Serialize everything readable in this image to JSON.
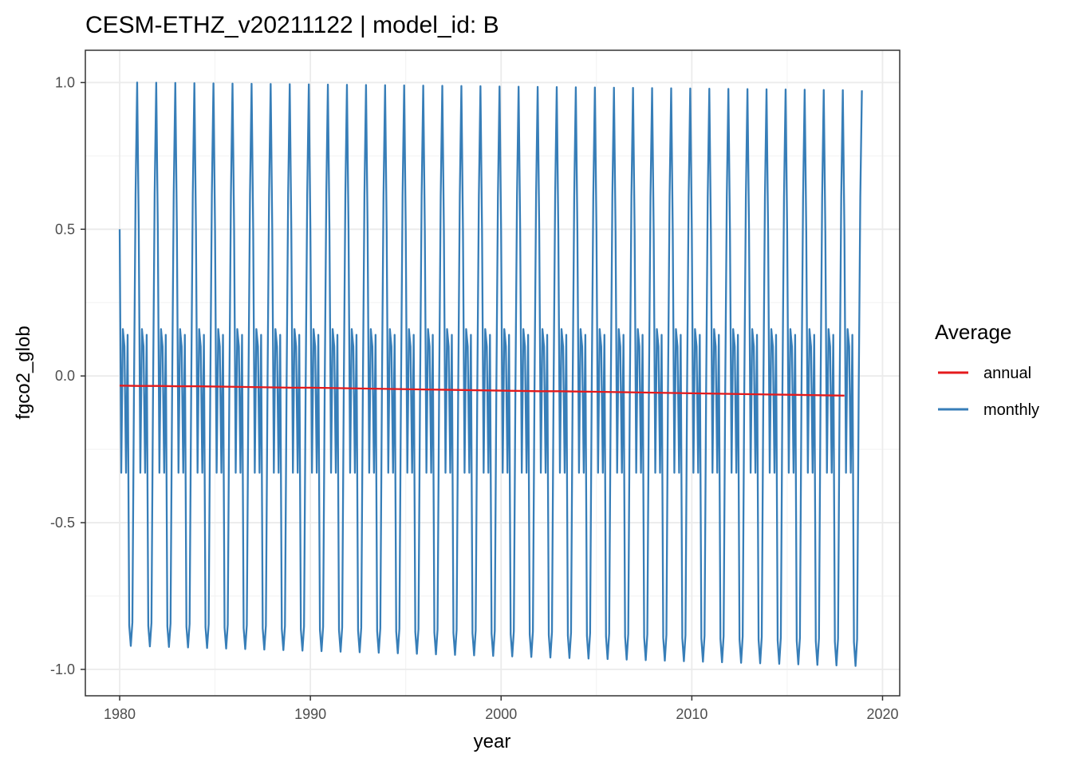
{
  "chart_data": {
    "type": "line",
    "title": "CESM-ETHZ_v20211122 | model_id: B",
    "xlabel": "year",
    "ylabel": "fgco2_glob",
    "xlim": [
      1978.2,
      2020.9
    ],
    "ylim": [
      -1.09,
      1.11
    ],
    "x_ticks": [
      1980,
      1990,
      2000,
      2010,
      2020
    ],
    "y_ticks": [
      1.0,
      0.5,
      0.0,
      -0.5,
      -1.0
    ],
    "x_tick_labels": [
      "1980",
      "1990",
      "2000",
      "2010",
      "2020"
    ],
    "y_tick_labels": [
      "1.0",
      "0.5",
      "0.0",
      "-0.5",
      "-1.0"
    ],
    "grid": true,
    "legend": {
      "title": "Average",
      "position": "right",
      "entries": [
        {
          "label": "annual",
          "color": "#e41a1c"
        },
        {
          "label": "monthly",
          "color": "#377eb8"
        }
      ]
    },
    "series": [
      {
        "name": "annual",
        "color": "#e41a1c",
        "x": [
          1980.0,
          1981.0,
          1982.0,
          1983.0,
          1984.0,
          1985.0,
          1986.0,
          1987.0,
          1988.0,
          1989.0,
          1990.0,
          1991.0,
          1992.0,
          1993.0,
          1994.0,
          1995.0,
          1996.0,
          1997.0,
          1998.0,
          1999.0,
          2000.0,
          2001.0,
          2002.0,
          2003.0,
          2004.0,
          2005.0,
          2006.0,
          2007.0,
          2008.0,
          2009.0,
          2010.0,
          2011.0,
          2012.0,
          2013.0,
          2014.0,
          2015.0,
          2016.0,
          2017.0,
          2018.0
        ],
        "y": [
          -0.033,
          -0.034,
          -0.034,
          -0.035,
          -0.035,
          -0.036,
          -0.037,
          -0.038,
          -0.039,
          -0.04,
          -0.04,
          -0.041,
          -0.042,
          -0.043,
          -0.044,
          -0.045,
          -0.046,
          -0.047,
          -0.048,
          -0.049,
          -0.05,
          -0.051,
          -0.052,
          -0.052,
          -0.053,
          -0.054,
          -0.055,
          -0.056,
          -0.057,
          -0.058,
          -0.059,
          -0.06,
          -0.061,
          -0.062,
          -0.063,
          -0.064,
          -0.065,
          -0.066,
          -0.067
        ]
      },
      {
        "name": "monthly",
        "color": "#377eb8",
        "x_start": 1980.0,
        "x_step": 0.0833333,
        "seasonal_cycle": [
          0.5,
          -0.33,
          0.16,
          0.1,
          -0.33,
          0.14,
          -0.85,
          -0.92,
          -0.84,
          -0.05,
          0.62,
          1.0
        ],
        "cycle_change_per_year": [
          -0.0003,
          0,
          0,
          0,
          0,
          0,
          -0.0015,
          -0.0018,
          -0.0015,
          0,
          -0.0003,
          -0.0007
        ],
        "n_years": 39
      }
    ]
  }
}
